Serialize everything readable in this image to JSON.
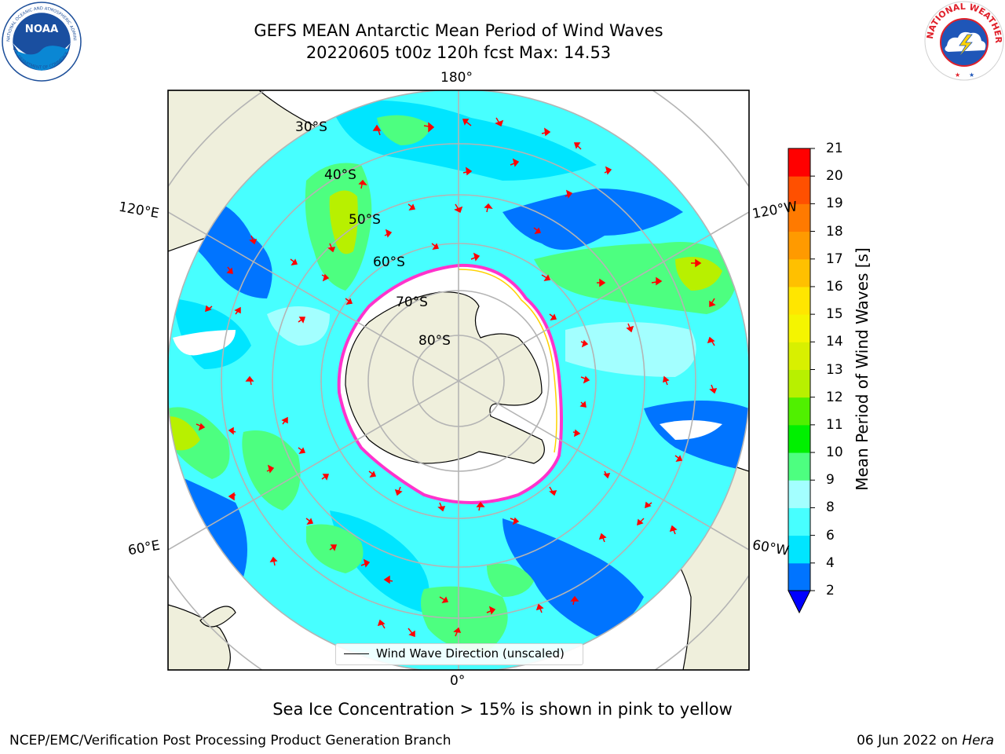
{
  "title_line1": "GEFS MEAN Antarctic Mean Period of Wind Waves",
  "title_line2": "20220605 t00z 120h fcst   Max: 14.53",
  "logos": {
    "left": {
      "icon": "noaa-logo",
      "text": "NOAA"
    },
    "right": {
      "icon": "nws-logo",
      "text": "NATIONAL WEATHER SERVICE"
    }
  },
  "map": {
    "projection": "south-polar-stereographic",
    "longitude_labels": {
      "top": "180°",
      "bottom": "0°",
      "left_upper": "120°E",
      "left_lower": "60°E",
      "right_upper": "120°W",
      "right_lower": "60°W"
    },
    "latitude_labels": [
      "30°S",
      "40°S",
      "50°S",
      "60°S",
      "70°S",
      "80°S"
    ]
  },
  "colorbar": {
    "title": "Mean Period of Wind Waves [s]",
    "ticks": [
      "2",
      "4",
      "6",
      "8",
      "9",
      "10",
      "11",
      "12",
      "13",
      "14",
      "15",
      "16",
      "17",
      "18",
      "19",
      "20",
      "21"
    ],
    "colors": [
      "#0074ff",
      "#00e5ff",
      "#47ffff",
      "#a3ffff",
      "#4dff80",
      "#00f000",
      "#50f000",
      "#b8f000",
      "#d8f000",
      "#f5f500",
      "#ffe600",
      "#ffc000",
      "#ff9a00",
      "#ff7a00",
      "#ff5000",
      "#ff0000"
    ],
    "under_color": "#0000ff"
  },
  "legend": {
    "label": "Wind Wave Direction (unscaled)"
  },
  "ice_note": "Sea Ice Concentration > 15% is shown in pink to yellow",
  "footer": {
    "left": "NCEP/EMC/Verification Post Processing Product Generation Branch",
    "right_date": "06 Jun 2022 on ",
    "right_host": "Hera"
  }
}
